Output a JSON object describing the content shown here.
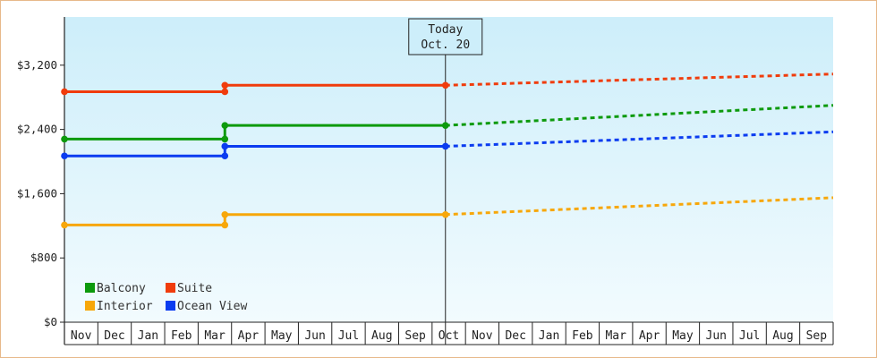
{
  "chart_data": {
    "type": "line",
    "title": "",
    "xlabel": "",
    "ylabel": "",
    "ylim": [
      0,
      3800
    ],
    "yticks": [
      0,
      800,
      1600,
      2400,
      3200
    ],
    "ytick_labels": [
      "$0",
      "$800",
      "$1,600",
      "$2,400",
      "$3,200"
    ],
    "x_categories": [
      "Nov",
      "Dec",
      "Jan",
      "Feb",
      "Mar",
      "Apr",
      "May",
      "Jun",
      "Jul",
      "Aug",
      "Sep",
      "Oct",
      "Nov",
      "Dec",
      "Jan",
      "Feb",
      "Mar",
      "Apr",
      "May",
      "Jun",
      "Jul",
      "Aug",
      "Sep"
    ],
    "today_marker": {
      "line1": "Today",
      "line2": "Oct. 20",
      "x": 11.4
    },
    "change_x": 4.8,
    "end_x": 23,
    "grid": false,
    "background_gradient": [
      "#cdeefa",
      "#f2fbfe"
    ],
    "legend": {
      "placement": "bottom-left"
    },
    "series": [
      {
        "name": "Balcony",
        "color": "#0d9a0d",
        "start_value": 2280,
        "after_change_value": 2450,
        "forecast_end_value": 2700
      },
      {
        "name": "Suite",
        "color": "#f03c0c",
        "start_value": 2870,
        "after_change_value": 2950,
        "forecast_end_value": 3090
      },
      {
        "name": "Interior",
        "color": "#f7a70a",
        "start_value": 1210,
        "after_change_value": 1340,
        "forecast_end_value": 1550
      },
      {
        "name": "Ocean View",
        "color": "#0b3cf0",
        "start_value": 2070,
        "after_change_value": 2190,
        "forecast_end_value": 2370
      }
    ]
  }
}
